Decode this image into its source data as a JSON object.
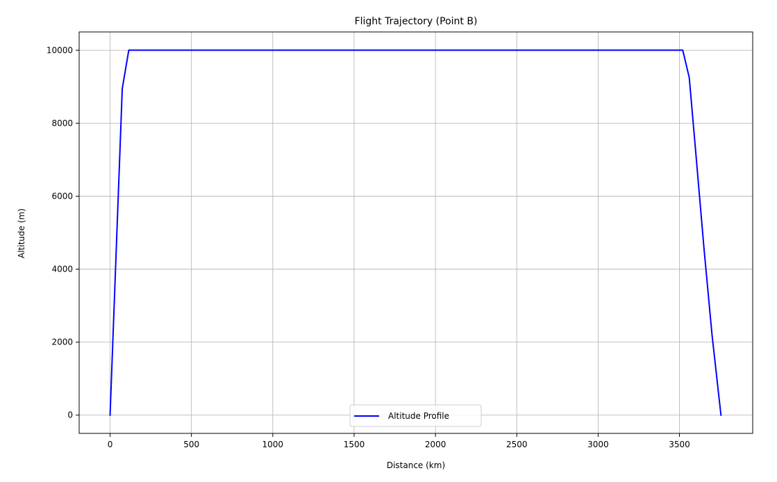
{
  "chart_data": {
    "type": "line",
    "title": "Flight Trajectory (Point B)",
    "xlabel": "Distance (km)",
    "ylabel": "Altitude (m)",
    "xlim": [
      -190,
      3950
    ],
    "ylim": [
      -500,
      10500
    ],
    "xticks": [
      0,
      500,
      1000,
      1500,
      2000,
      2500,
      3000,
      3500
    ],
    "yticks": [
      0,
      2000,
      4000,
      6000,
      8000,
      10000
    ],
    "grid": true,
    "legend_position": "lower center",
    "series": [
      {
        "name": "Altitude Profile",
        "color": "#0000ff",
        "x": [
          0,
          75,
          115,
          3520,
          3560,
          3600,
          3650,
          3700,
          3755
        ],
        "y": [
          0,
          8950,
          10000,
          10000,
          9250,
          7200,
          4600,
          2200,
          0
        ]
      }
    ]
  }
}
